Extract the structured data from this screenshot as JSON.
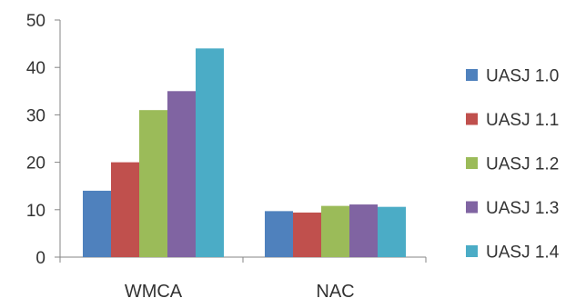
{
  "chart_data": {
    "type": "bar",
    "title": "",
    "xlabel": "",
    "ylabel": "",
    "categories": [
      "WMCA",
      "NAC"
    ],
    "ylim": [
      0,
      50
    ],
    "yticks": [
      0,
      10,
      20,
      30,
      40,
      50
    ],
    "grid": false,
    "legend_position": "right",
    "series": [
      {
        "name": "UASJ 1.0",
        "color": "#4f81bd",
        "values": [
          14,
          9.7
        ]
      },
      {
        "name": "UASJ 1.1",
        "color": "#c0504d",
        "values": [
          20,
          9.4
        ]
      },
      {
        "name": "UASJ 1.2",
        "color": "#9bbb59",
        "values": [
          31,
          10.8
        ]
      },
      {
        "name": "UASJ 1.3",
        "color": "#8064a2",
        "values": [
          35,
          11.1
        ]
      },
      {
        "name": "UASJ 1.4",
        "color": "#4bacc6",
        "values": [
          44,
          10.6
        ]
      }
    ]
  }
}
